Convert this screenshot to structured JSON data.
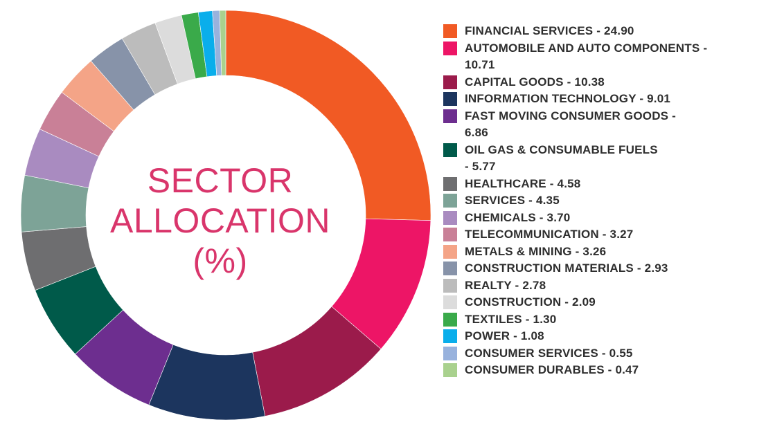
{
  "chart_data": {
    "type": "pie",
    "title_lines": [
      "SECTOR",
      "ALLOCATION",
      "(%)"
    ],
    "legend_placement": "right",
    "donut": true,
    "slices": [
      {
        "label": "FINANCIAL SERVICES - 24.90",
        "category": "FINANCIAL SERVICES",
        "value": 24.9,
        "color": "#f15a24"
      },
      {
        "label": "AUTOMOBILE AND AUTO COMPONENTS - 10.71",
        "category": "AUTOMOBILE AND AUTO COMPONENTS",
        "value": 10.71,
        "color": "#ed1566"
      },
      {
        "label": "CAPITAL GOODS - 10.38",
        "category": "CAPITAL GOODS",
        "value": 10.38,
        "color": "#9b1b4b"
      },
      {
        "label": "INFORMATION TECHNOLOGY - 9.01",
        "category": "INFORMATION TECHNOLOGY",
        "value": 9.01,
        "color": "#1c355e"
      },
      {
        "label": "FAST MOVING CONSUMER GOODS - 6.86",
        "category": "FAST MOVING CONSUMER GOODS",
        "value": 6.86,
        "color": "#6d2e8f"
      },
      {
        "label": "OIL GAS & CONSUMABLE FUELS - 5.77",
        "category": "OIL GAS & CONSUMABLE FUELS",
        "value": 5.77,
        "color": "#005a4a"
      },
      {
        "label": "HEALTHCARE - 4.58",
        "category": "HEALTHCARE",
        "value": 4.58,
        "color": "#6e6e70"
      },
      {
        "label": "SERVICES - 4.35",
        "category": "SERVICES",
        "value": 4.35,
        "color": "#7da397"
      },
      {
        "label": "CHEMICALS - 3.70",
        "category": "CHEMICALS",
        "value": 3.7,
        "color": "#a98bc0"
      },
      {
        "label": "TELECOMMUNICATION - 3.27",
        "category": "TELECOMMUNICATION",
        "value": 3.27,
        "color": "#c98097"
      },
      {
        "label": "METALS & MINING - 3.26",
        "category": "METALS & MINING",
        "value": 3.26,
        "color": "#f4a487"
      },
      {
        "label": "CONSTRUCTION MATERIALS - 2.93",
        "category": "CONSTRUCTION MATERIALS",
        "value": 2.93,
        "color": "#8793a9"
      },
      {
        "label": "REALTY - 2.78",
        "category": "REALTY",
        "value": 2.78,
        "color": "#bcbcbc"
      },
      {
        "label": "CONSTRUCTION - 2.09",
        "category": "CONSTRUCTION",
        "value": 2.09,
        "color": "#dcdcdc"
      },
      {
        "label": "TEXTILES - 1.30",
        "category": "TEXTILES",
        "value": 1.3,
        "color": "#3aaa4a"
      },
      {
        "label": "POWER - 1.08",
        "category": "POWER",
        "value": 1.08,
        "color": "#0aaeeb"
      },
      {
        "label": "CONSUMER SERVICES - 0.55",
        "category": "CONSUMER SERVICES",
        "value": 0.55,
        "color": "#98b2dd"
      },
      {
        "label": "CONSUMER DURABLES - 0.47",
        "category": "CONSUMER DURABLES",
        "value": 0.47,
        "color": "#a9d18e"
      }
    ]
  }
}
